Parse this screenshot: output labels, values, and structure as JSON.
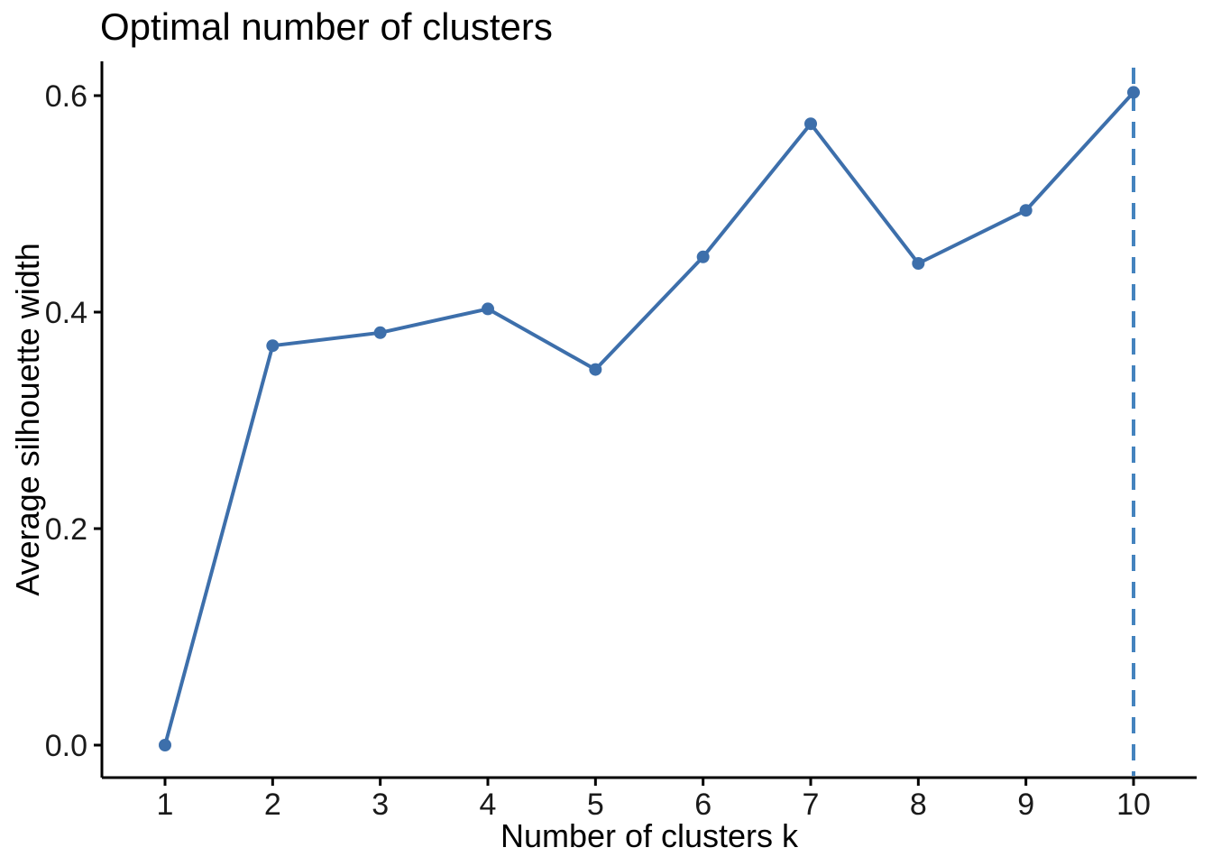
{
  "chart_data": {
    "type": "line",
    "title": "Optimal number of clusters",
    "xlabel": "Number of clusters k",
    "ylabel": "Average silhouette width",
    "x": [
      1,
      2,
      3,
      4,
      5,
      6,
      7,
      8,
      9,
      10
    ],
    "values": [
      0.0,
      0.369,
      0.381,
      0.403,
      0.347,
      0.451,
      0.574,
      0.445,
      0.494,
      0.603
    ],
    "x_tick_labels": [
      "1",
      "2",
      "3",
      "4",
      "5",
      "6",
      "7",
      "8",
      "9",
      "10"
    ],
    "y_ticks": [
      0.0,
      0.2,
      0.4,
      0.6
    ],
    "y_tick_labels": [
      "0.0",
      "0.2",
      "0.4",
      "0.6"
    ],
    "ylim": [
      -0.03,
      0.63
    ],
    "xlim": [
      0.45,
      10.55
    ],
    "grid": false,
    "legend": "none",
    "best_k": 10,
    "best_k_line_style": "dashed",
    "marker": "circle",
    "colors": {
      "series": "#3d6fab",
      "vline": "#4483be",
      "axis": "#000000",
      "tick_text": "#1a1a1a",
      "background": "#ffffff"
    }
  }
}
